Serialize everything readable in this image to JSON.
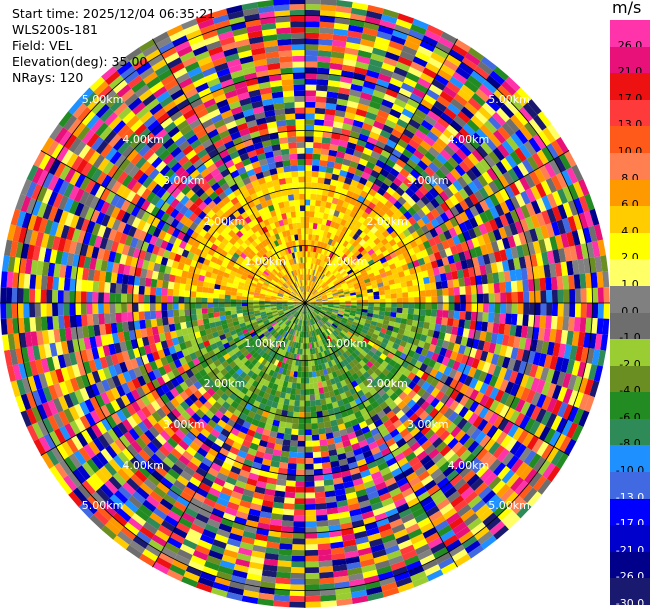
{
  "header": {
    "start_time": "Start time: 2025/12/04 06:35:21",
    "instrument": "WLS200s-181",
    "field": "Field: VEL",
    "elevation": "Elevation(deg): 35.00",
    "nrays": "NRays: 120"
  },
  "colorbar": {
    "unit": "m/s",
    "levels": [
      {
        "label": "26.0",
        "color": "#ff33aa"
      },
      {
        "label": "21.0",
        "color": "#e8117a"
      },
      {
        "label": "17.0",
        "color": "#ee1111"
      },
      {
        "label": "13.0",
        "color": "#ff3a3a"
      },
      {
        "label": "10.0",
        "color": "#ff5a1a"
      },
      {
        "label": "8.0",
        "color": "#ff7f50"
      },
      {
        "label": "6.0",
        "color": "#ff9900"
      },
      {
        "label": "4.0",
        "color": "#ffcc00"
      },
      {
        "label": "2.0",
        "color": "#ffff00"
      },
      {
        "label": "1.0",
        "color": "#ffff66"
      },
      {
        "label": "0.0",
        "color": "#808080"
      },
      {
        "label": "-1.0",
        "color": "#6e6e6e"
      },
      {
        "label": "-2.0",
        "color": "#9acd32"
      },
      {
        "label": "-4.0",
        "color": "#6b8e23"
      },
      {
        "label": "-6.0",
        "color": "#228b22"
      },
      {
        "label": "-8.0",
        "color": "#2e8b57"
      },
      {
        "label": "-10.0",
        "color": "#1e90ff"
      },
      {
        "label": "-13.0",
        "color": "#4169e1"
      },
      {
        "label": "-17.0",
        "color": "#0000ff"
      },
      {
        "label": "-21.0",
        "color": "#0000cd"
      },
      {
        "label": "-26.0",
        "color": "#00008b"
      },
      {
        "label": "-30.0",
        "color": "#191970"
      }
    ]
  },
  "chart_data": {
    "type": "heatmap",
    "projection": "polar-ppi",
    "rays": 120,
    "range_rings": [
      "1.00km",
      "2.00km",
      "3.00km",
      "4.00km",
      "5.00km"
    ],
    "grid": true,
    "near_field": {
      "description_visible": false,
      "north_hemisphere_values_ms": [
        2.0,
        4.0,
        6.0
      ],
      "south_hemisphere_values_ms": [
        -2.0,
        -4.0,
        -6.0,
        -8.0
      ],
      "valid_max_range_km": 2.2
    }
  }
}
